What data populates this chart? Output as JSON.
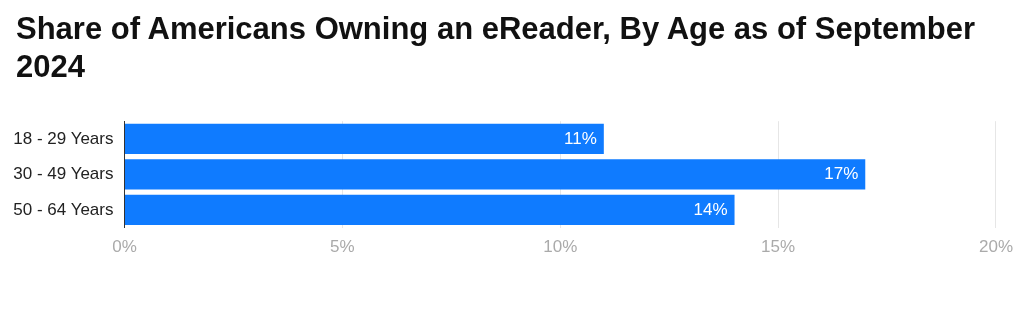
{
  "chart_data": {
    "type": "bar",
    "orientation": "horizontal",
    "title": "Share of Americans Owning an eReader, By Age as of September 2024",
    "categories": [
      "18 - 29 Years",
      "30 - 49 Years",
      "50 - 64 Years"
    ],
    "values": [
      11,
      17,
      14
    ],
    "value_labels": [
      "11%",
      "17%",
      "14%"
    ],
    "color": "#0f7bff",
    "xlim": [
      0,
      20
    ],
    "xticks": [
      {
        "value": 0,
        "label": "0%"
      },
      {
        "value": 5,
        "label": "5%"
      },
      {
        "value": 10,
        "label": "10%"
      },
      {
        "value": 15,
        "label": "15%"
      },
      {
        "value": 20,
        "label": "20%"
      }
    ],
    "grid": "x",
    "legend": false
  }
}
